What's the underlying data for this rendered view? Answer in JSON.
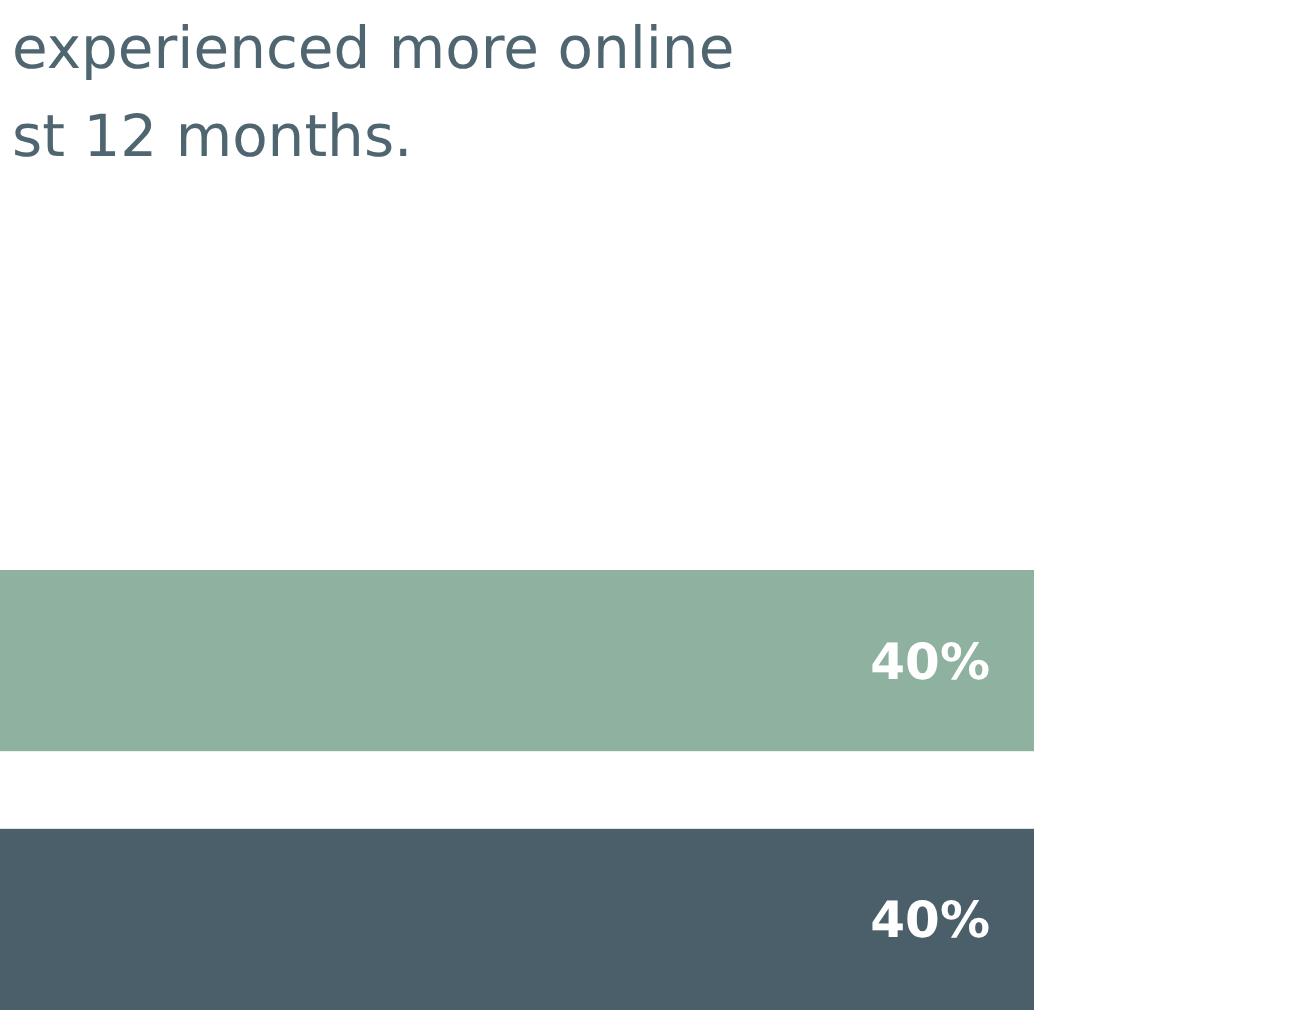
{
  "chart_data": {
    "type": "bar",
    "orientation": "horizontal",
    "title": "experienced more online st 12 months.",
    "categories": [
      null,
      null
    ],
    "values": [
      40,
      40
    ],
    "colors": [
      "#8fb19f",
      "#4a5f6a"
    ],
    "value_labels": [
      "40%",
      "40%"
    ]
  }
}
